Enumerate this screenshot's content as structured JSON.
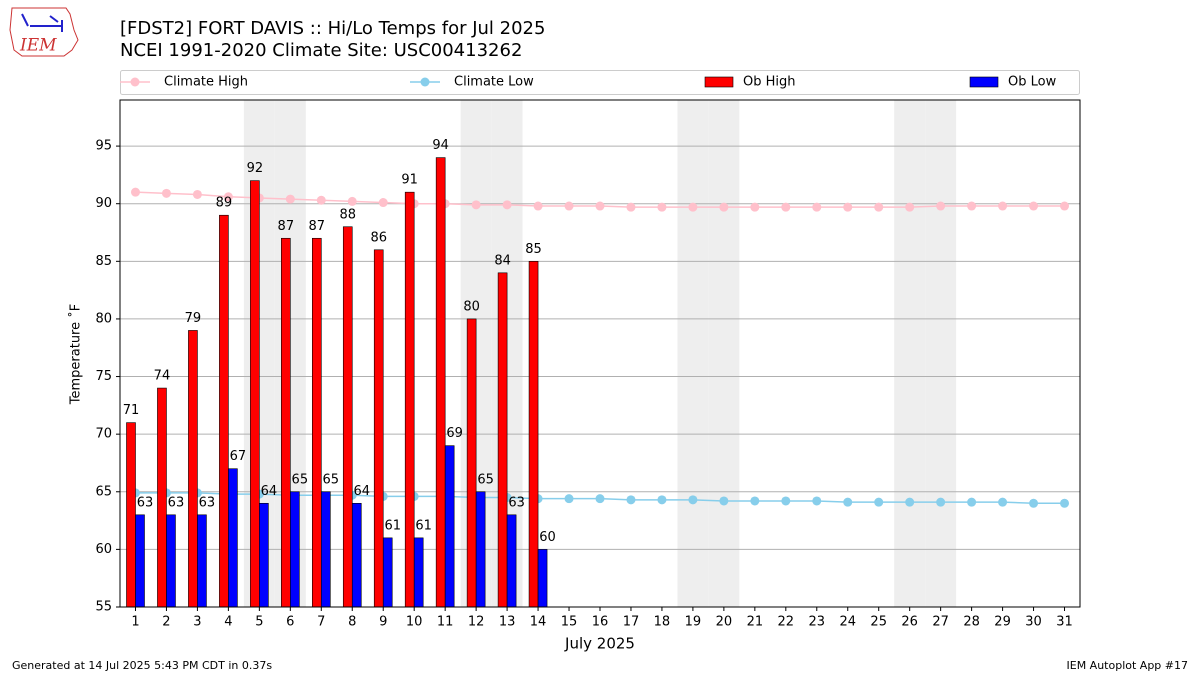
{
  "chart_data": {
    "type": "bar",
    "logo_text": "IEM",
    "title": "[FDST2] FORT DAVIS :: Hi/Lo Temps for Jul 2025",
    "subtitle": "NCEI 1991-2020 Climate Site: USC00413262",
    "y_label": "Temperature ˚F",
    "x_label": "July 2025",
    "footer_left": "Generated at 14 Jul 2025 5:43 PM CDT in 0.37s",
    "footer_right": "IEM Autoplot App #17",
    "categories": [
      "1",
      "2",
      "3",
      "4",
      "5",
      "6",
      "7",
      "8",
      "9",
      "10",
      "11",
      "12",
      "13",
      "14",
      "15",
      "16",
      "17",
      "18",
      "19",
      "20",
      "21",
      "22",
      "23",
      "24",
      "25",
      "26",
      "27",
      "28",
      "29",
      "30",
      "31"
    ],
    "shaded_categories": [
      "5",
      "6",
      "12",
      "13",
      "19",
      "20",
      "26",
      "27"
    ],
    "shade_color": "#eeeeee",
    "ylim": [
      55,
      99
    ],
    "yticks": [
      55,
      60,
      65,
      70,
      75,
      80,
      85,
      90,
      95
    ],
    "grid": true,
    "legend": "top",
    "series": [
      {
        "name": "Climate High",
        "type": "line",
        "color": "#ffc0cb",
        "values": [
          91.0,
          90.9,
          90.8,
          90.6,
          90.5,
          90.4,
          90.3,
          90.2,
          90.1,
          90.0,
          90.0,
          89.9,
          89.9,
          89.8,
          89.8,
          89.8,
          89.7,
          89.7,
          89.7,
          89.7,
          89.7,
          89.7,
          89.7,
          89.7,
          89.7,
          89.7,
          89.8,
          89.8,
          89.8,
          89.8,
          89.8
        ]
      },
      {
        "name": "Climate Low",
        "type": "line",
        "color": "#87ceeb",
        "values": [
          64.9,
          64.9,
          64.9,
          64.8,
          64.8,
          64.7,
          64.7,
          64.7,
          64.6,
          64.6,
          64.6,
          64.5,
          64.5,
          64.4,
          64.4,
          64.4,
          64.3,
          64.3,
          64.3,
          64.2,
          64.2,
          64.2,
          64.2,
          64.1,
          64.1,
          64.1,
          64.1,
          64.1,
          64.1,
          64.0,
          64.0
        ]
      },
      {
        "name": "Ob High",
        "type": "bar",
        "color": "#ff0000",
        "values": [
          71,
          74,
          79,
          89,
          92,
          87,
          87,
          88,
          86,
          91,
          94,
          80,
          84,
          85,
          null,
          null,
          null,
          null,
          null,
          null,
          null,
          null,
          null,
          null,
          null,
          null,
          null,
          null,
          null,
          null,
          null
        ]
      },
      {
        "name": "Ob Low",
        "type": "bar",
        "color": "#0000ff",
        "values": [
          63,
          63,
          63,
          67,
          64,
          65,
          65,
          64,
          61,
          61,
          69,
          65,
          63,
          60,
          null,
          null,
          null,
          null,
          null,
          null,
          null,
          null,
          null,
          null,
          null,
          null,
          null,
          null,
          null,
          null,
          null
        ]
      }
    ]
  }
}
